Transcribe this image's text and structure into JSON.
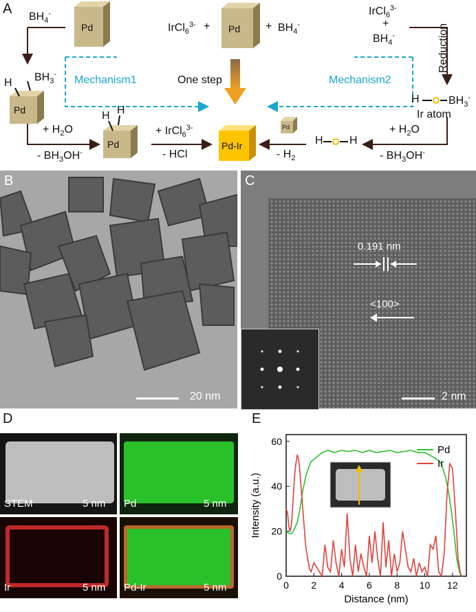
{
  "panel_labels": {
    "a": "A",
    "b": "B",
    "c": "C",
    "d": "D",
    "e": "E"
  },
  "scheme": {
    "cube_label": "Pd",
    "product_label": "Pd-Ir",
    "bh4": "BH",
    "bh4_sub": "4",
    "bh4_sup": "-",
    "ircl6": "IrCl",
    "ircl6_sub": "6",
    "ircl6_sup": "3-",
    "plus": "+",
    "one_step": "One step",
    "mechanism1": "Mechanism1",
    "mechanism2": "Mechanism2",
    "reduction": "Reduction",
    "ir_atom": "Ir atom",
    "h_bh3": "H",
    "bh3": "BH",
    "bh3_sub": "3",
    "bh3_sup": "-",
    "h_label": "H",
    "plus_h2o": "+ H",
    "h2o_sub": "2",
    "h2o_o": "O",
    "minus_bh3oh": "- BH",
    "bh3oh_sub": "3",
    "bh3oh_oh": "OH",
    "bh3oh_sup": "-",
    "plus_ircl6": "+ IrCl",
    "minus_hcl": "- HCl",
    "minus_h2": "- H",
    "h2_sub": "2",
    "bh3_left": "BH",
    "bh3_left_sub": "3",
    "bh3_left_sup": "-"
  },
  "tem_b": {
    "scale": "20 nm"
  },
  "tem_c": {
    "scale": "2 nm",
    "spacing": "0.191 nm",
    "direction": "<100>"
  },
  "eds": {
    "stem": "STEM",
    "pd": "Pd",
    "ir": "Ir",
    "pdir": "Pd-Ir",
    "scale": "5 nm"
  },
  "colors": {
    "pd_green": "#2ac02a",
    "ir_red": "#e0403a",
    "cube_face": "#c9b88a",
    "product": "#ffc400",
    "mechanism": "#19a6cf",
    "arrow": "#3a1d15"
  },
  "chart_data": {
    "type": "line",
    "xlabel": "Distance (nm)",
    "ylabel": "Intensity (a.u.)",
    "xlim": [
      0,
      13
    ],
    "ylim": [
      0,
      63
    ],
    "xticks": [
      0,
      2,
      4,
      6,
      8,
      10,
      12
    ],
    "yticks": [
      0,
      20,
      40,
      60
    ],
    "legend_position": "top-right",
    "series": [
      {
        "name": "Pd",
        "color": "#2ac02a",
        "x": [
          0,
          0.2,
          0.4,
          0.6,
          0.8,
          1.0,
          1.2,
          1.4,
          1.6,
          1.8,
          2.0,
          2.2,
          2.4,
          2.6,
          2.8,
          3.0,
          3.5,
          4.0,
          4.5,
          5.0,
          5.5,
          6.0,
          6.5,
          7.0,
          7.5,
          8.0,
          8.5,
          9.0,
          9.5,
          10.0,
          10.3,
          10.6,
          10.9,
          11.2,
          11.5,
          11.7,
          11.9,
          12.1,
          12.3,
          12.5,
          12.7
        ],
        "values": [
          20,
          19,
          19,
          21,
          24,
          30,
          38,
          44,
          48,
          51,
          52,
          53,
          54,
          55,
          55.5,
          56,
          55,
          56,
          55.5,
          56,
          55,
          56,
          55,
          55.5,
          56,
          55,
          55.5,
          56,
          55,
          55,
          54,
          53,
          52,
          50,
          44,
          38,
          30,
          20,
          8,
          2,
          0
        ]
      },
      {
        "name": "Ir",
        "color": "#e0403a",
        "x": [
          0,
          0.1,
          0.2,
          0.3,
          0.4,
          0.5,
          0.6,
          0.7,
          0.8,
          0.9,
          1.0,
          1.1,
          1.2,
          1.3,
          1.4,
          1.5,
          1.6,
          1.7,
          1.8,
          2.0,
          2.2,
          2.4,
          2.6,
          2.8,
          3.0,
          3.2,
          3.4,
          3.6,
          3.8,
          4.0,
          4.2,
          4.4,
          4.6,
          4.8,
          5.0,
          5.2,
          5.4,
          5.6,
          5.8,
          6.0,
          6.2,
          6.4,
          6.6,
          6.8,
          7.0,
          7.2,
          7.4,
          7.6,
          7.8,
          8.0,
          8.2,
          8.4,
          8.6,
          8.8,
          9.0,
          9.2,
          9.4,
          9.6,
          9.8,
          10.0,
          10.2,
          10.4,
          10.6,
          10.8,
          11.0,
          11.2,
          11.4,
          11.6,
          11.8,
          12.0,
          12.2,
          12.4,
          12.6
        ],
        "values": [
          30,
          28,
          22,
          20,
          24,
          34,
          44,
          50,
          54,
          52,
          46,
          38,
          30,
          22,
          14,
          10,
          6,
          3,
          2,
          6,
          4,
          2,
          0,
          14,
          4,
          2,
          16,
          6,
          0,
          12,
          4,
          28,
          8,
          0,
          14,
          2,
          10,
          4,
          0,
          18,
          6,
          20,
          8,
          0,
          24,
          4,
          16,
          0,
          10,
          2,
          6,
          20,
          12,
          4,
          2,
          8,
          0,
          6,
          2,
          4,
          0,
          14,
          12,
          18,
          2,
          0,
          10,
          36,
          50,
          48,
          30,
          8,
          0
        ]
      }
    ]
  }
}
